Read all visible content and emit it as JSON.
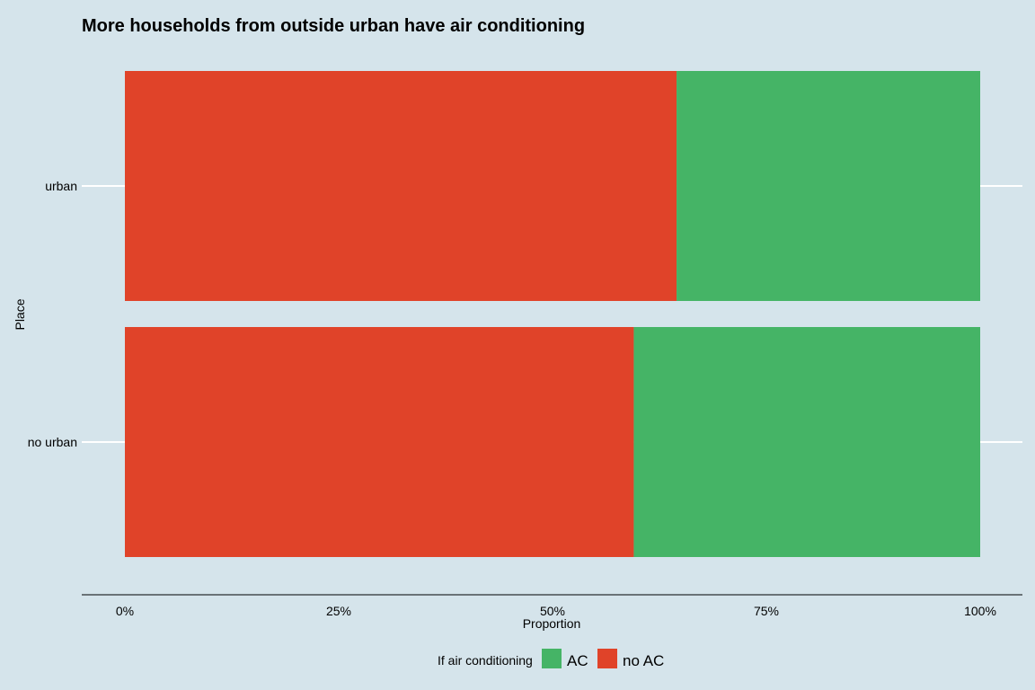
{
  "colors": {
    "background": "#d5e4eb",
    "no_ac": "#e04329",
    "ac": "#45b466",
    "gridline": "#ffffff",
    "axis_line": "#000000"
  },
  "chart_data": {
    "type": "bar",
    "orientation": "horizontal",
    "stacked": "proportion",
    "title": "More households from outside urban have air conditioning",
    "xlabel": "Proportion",
    "ylabel": "Place",
    "categories": [
      "urban",
      "no urban"
    ],
    "series": [
      {
        "name": "no AC",
        "color": "#e04329",
        "values": [
          0.645,
          0.595
        ]
      },
      {
        "name": "AC",
        "color": "#45b466",
        "values": [
          0.355,
          0.405
        ]
      }
    ],
    "xlim": [
      0,
      1
    ],
    "x_ticks": [
      0,
      0.25,
      0.5,
      0.75,
      1
    ],
    "x_tick_labels": [
      "0%",
      "25%",
      "50%",
      "75%",
      "100%"
    ],
    "grid": "horizontal major lines at categories",
    "legend": {
      "title": "If air conditioning",
      "position": "bottom",
      "entries": [
        {
          "label": "AC",
          "color": "#45b466"
        },
        {
          "label": "no AC",
          "color": "#e04329"
        }
      ]
    }
  }
}
